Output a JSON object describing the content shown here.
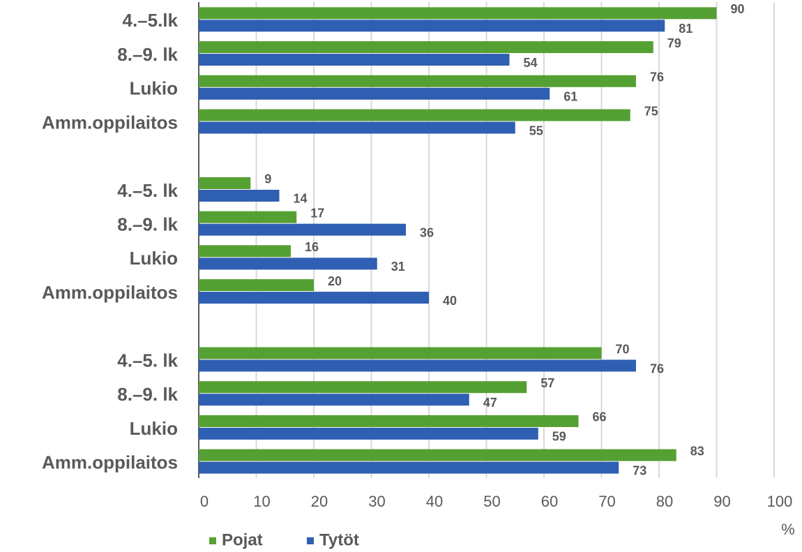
{
  "chart_data": {
    "type": "hbar",
    "categories": [
      "4.–5.lk",
      "8.–9. lk",
      "Lukio",
      "Amm.oppilaitos",
      null,
      "4.–5. lk",
      "8.–9. lk",
      "Lukio",
      "Amm.oppilaitos",
      null,
      "4.–5. lk",
      "8.–9. lk",
      "Lukio",
      "Amm.oppilaitos"
    ],
    "series": [
      {
        "name": "Pojat",
        "color": "#55a032",
        "values": [
          90,
          79,
          76,
          75,
          null,
          9,
          17,
          16,
          20,
          null,
          70,
          57,
          66,
          83
        ]
      },
      {
        "name": "Tytöt",
        "color": "#2f5fb3",
        "values": [
          81,
          54,
          61,
          55,
          null,
          14,
          36,
          31,
          40,
          null,
          76,
          47,
          59,
          73
        ]
      }
    ],
    "xlim": [
      0,
      100
    ],
    "xticks": [
      0,
      10,
      20,
      30,
      40,
      50,
      60,
      70,
      80,
      90,
      100
    ],
    "xlabel": "%",
    "grid": true,
    "legend": "bottom-left"
  }
}
